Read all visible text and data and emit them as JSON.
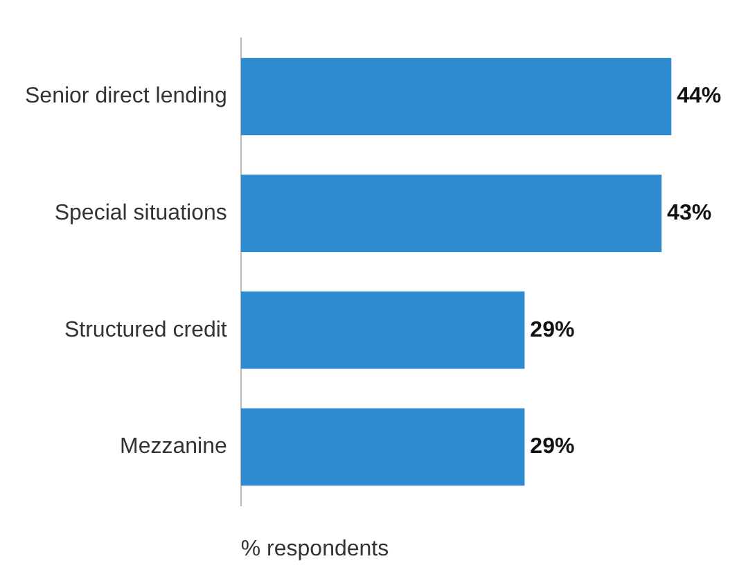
{
  "chart_data": {
    "type": "bar",
    "orientation": "horizontal",
    "xlabel": "% respondents",
    "categories": [
      "Senior direct lending",
      "Special situations",
      "Structured credit",
      "Mezzanine"
    ],
    "values": [
      44,
      43,
      29,
      29
    ],
    "color": "#2e8bd0",
    "value_labels": [
      "44%",
      "43%",
      "29%",
      "29%"
    ],
    "grid": false,
    "legend": false
  }
}
